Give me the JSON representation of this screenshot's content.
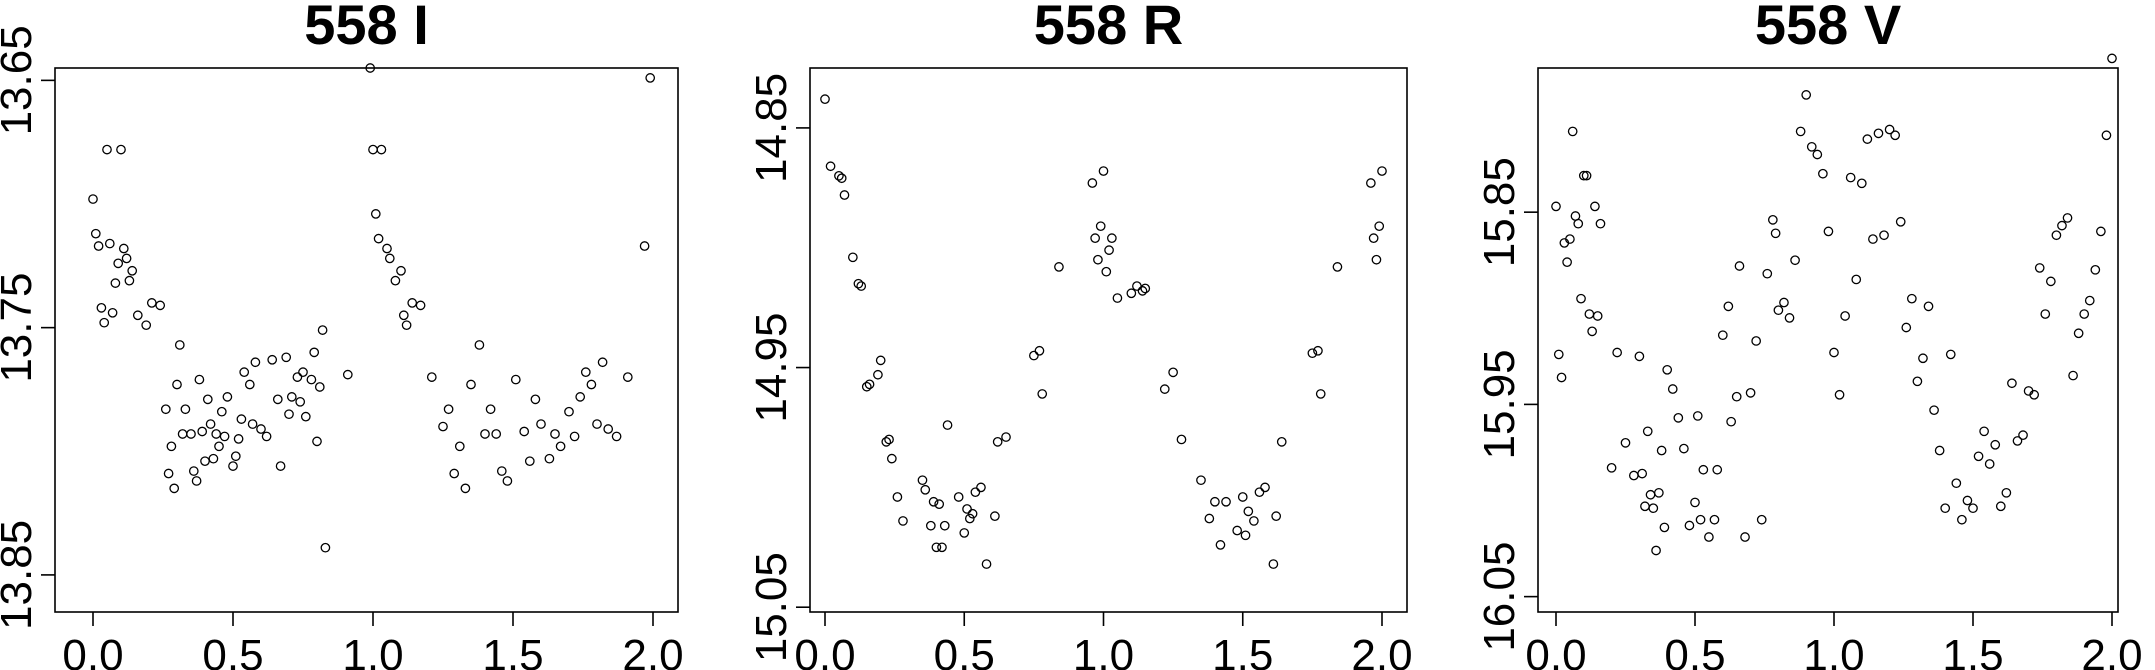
{
  "chart_data": [
    {
      "type": "scatter",
      "title": "558 I",
      "xlabel": "",
      "ylabel": "",
      "xlim": [
        0,
        2
      ],
      "ylim": [
        13.865,
        13.645
      ],
      "y_reversed": true,
      "xticks": [
        "0.0",
        "0.5",
        "1.0",
        "1.5",
        "2.0"
      ],
      "yticks": [
        "13.65",
        "13.75",
        "13.85"
      ],
      "ytick_values": [
        13.65,
        13.75,
        13.85
      ],
      "marker": "open-circle",
      "x": [
        0.0,
        0.01,
        0.02,
        0.03,
        0.04,
        0.05,
        0.06,
        0.07,
        0.08,
        0.09,
        0.1,
        0.11,
        0.12,
        0.13,
        0.14,
        0.16,
        0.19,
        0.21,
        0.24,
        0.26,
        0.27,
        0.28,
        0.29,
        0.3,
        0.31,
        0.32,
        0.33,
        0.35,
        0.36,
        0.37,
        0.38,
        0.39,
        0.4,
        0.41,
        0.42,
        0.43,
        0.44,
        0.45,
        0.46,
        0.47,
        0.48,
        0.5,
        0.51,
        0.52,
        0.53,
        0.54,
        0.56,
        0.57,
        0.58,
        0.6,
        0.62,
        0.64,
        0.66,
        0.67,
        0.69,
        0.7,
        0.71,
        0.73,
        0.74,
        0.75,
        0.76,
        0.78,
        0.79,
        0.8,
        0.81,
        0.82,
        0.83,
        0.91,
        0.99,
        1.0,
        1.01,
        1.02,
        1.03,
        1.05,
        1.06,
        1.08,
        1.1,
        1.11,
        1.12,
        1.14,
        1.17,
        1.21,
        1.25,
        1.27,
        1.29,
        1.31,
        1.33,
        1.35,
        1.38,
        1.4,
        1.42,
        1.44,
        1.46,
        1.48,
        1.51,
        1.54,
        1.56,
        1.58,
        1.6,
        1.63,
        1.65,
        1.67,
        1.7,
        1.72,
        1.74,
        1.76,
        1.78,
        1.8,
        1.82,
        1.84,
        1.87,
        1.91,
        1.97,
        1.99
      ],
      "y": [
        13.698,
        13.712,
        13.717,
        13.742,
        13.748,
        13.678,
        13.716,
        13.744,
        13.732,
        13.724,
        13.678,
        13.718,
        13.722,
        13.731,
        13.727,
        13.745,
        13.749,
        13.74,
        13.741,
        13.783,
        13.809,
        13.798,
        13.815,
        13.773,
        13.757,
        13.793,
        13.783,
        13.793,
        13.808,
        13.812,
        13.771,
        13.792,
        13.804,
        13.779,
        13.789,
        13.803,
        13.793,
        13.798,
        13.784,
        13.794,
        13.778,
        13.806,
        13.802,
        13.795,
        13.787,
        13.768,
        13.773,
        13.789,
        13.764,
        13.791,
        13.794,
        13.763,
        13.779,
        13.806,
        13.762,
        13.785,
        13.778,
        13.77,
        13.78,
        13.768,
        13.786,
        13.771,
        13.76,
        13.796,
        13.774,
        13.751,
        13.839,
        13.769,
        13.645,
        13.678,
        13.704,
        13.714,
        13.678,
        13.718,
        13.722,
        13.731,
        13.727,
        13.745,
        13.749,
        13.74,
        13.741,
        13.77,
        13.79,
        13.783,
        13.809,
        13.798,
        13.815,
        13.773,
        13.757,
        13.793,
        13.783,
        13.793,
        13.808,
        13.812,
        13.771,
        13.792,
        13.804,
        13.779,
        13.789,
        13.803,
        13.793,
        13.798,
        13.784,
        13.794,
        13.778,
        13.768,
        13.773,
        13.789,
        13.764,
        13.791,
        13.794,
        13.77,
        13.717,
        13.649
      ],
      "y_extra": []
    },
    {
      "type": "scatter",
      "title": "558 R",
      "xlabel": "",
      "ylabel": "",
      "xlim": [
        0,
        2
      ],
      "ylim": [
        15.052,
        14.825
      ],
      "y_reversed": true,
      "xticks": [
        "0.0",
        "0.5",
        "1.0",
        "1.5",
        "2.0"
      ],
      "yticks": [
        "14.85",
        "14.95",
        "15.05"
      ],
      "ytick_values": [
        14.85,
        14.95,
        15.05
      ],
      "marker": "open-circle",
      "x": [
        0.0,
        0.02,
        0.05,
        0.06,
        0.07,
        0.1,
        0.12,
        0.13,
        0.15,
        0.16,
        0.19,
        0.2,
        0.22,
        0.23,
        0.24,
        0.26,
        0.28,
        0.35,
        0.36,
        0.38,
        0.39,
        0.4,
        0.41,
        0.42,
        0.43,
        0.44,
        0.48,
        0.5,
        0.51,
        0.52,
        0.53,
        0.54,
        0.56,
        0.58,
        0.61,
        0.62,
        0.65,
        0.75,
        0.77,
        0.78,
        0.84,
        0.96,
        0.97,
        0.98,
        0.99,
        1.0,
        1.01,
        1.02,
        1.03,
        1.05,
        1.1,
        1.12,
        1.14,
        1.15,
        1.22,
        1.25,
        1.28,
        1.35,
        1.38,
        1.4,
        1.42,
        1.44,
        1.48,
        1.5,
        1.51,
        1.52,
        1.54,
        1.56,
        1.58,
        1.61,
        1.62,
        1.64,
        1.75,
        1.77,
        1.78,
        1.84,
        1.96,
        1.97,
        1.98,
        1.99,
        2.0
      ],
      "y": [
        14.838,
        14.866,
        14.87,
        14.871,
        14.878,
        14.904,
        14.915,
        14.916,
        14.958,
        14.957,
        14.953,
        14.947,
        14.981,
        14.98,
        14.988,
        15.004,
        15.014,
        14.997,
        15.001,
        15.016,
        15.006,
        15.025,
        15.007,
        15.025,
        15.016,
        14.974,
        15.004,
        15.019,
        15.009,
        15.013,
        15.011,
        15.002,
        15.0,
        15.032,
        15.012,
        14.981,
        14.979,
        14.945,
        14.943,
        14.961,
        14.908,
        14.873,
        14.896,
        14.905,
        14.891,
        14.868,
        14.91,
        14.901,
        14.896,
        14.921,
        14.919,
        14.916,
        14.918,
        14.917,
        14.959,
        14.952,
        14.98,
        14.997,
        15.013,
        15.006,
        15.024,
        15.006,
        15.018,
        15.004,
        15.02,
        15.01,
        15.014,
        15.002,
        15.0,
        15.032,
        15.012,
        14.981,
        14.944,
        14.943,
        14.961,
        14.908,
        14.873,
        14.896,
        14.905,
        14.891,
        14.868
      ],
      "y_extra": []
    },
    {
      "type": "scatter",
      "title": "558 V",
      "xlabel": "",
      "ylabel": "",
      "xlim": [
        0,
        2
      ],
      "ylim": [
        16.058,
        15.775
      ],
      "y_reversed": true,
      "xticks": [
        "0.0",
        "0.5",
        "1.0",
        "1.5",
        "2.0"
      ],
      "yticks": [
        "15.85",
        "15.95",
        "16.05"
      ],
      "ytick_values": [
        15.85,
        15.95,
        16.05
      ],
      "marker": "open-circle",
      "x": [
        0.0,
        0.01,
        0.02,
        0.03,
        0.04,
        0.05,
        0.06,
        0.07,
        0.08,
        0.09,
        0.1,
        0.11,
        0.12,
        0.13,
        0.14,
        0.15,
        0.16,
        0.2,
        0.22,
        0.25,
        0.28,
        0.3,
        0.31,
        0.32,
        0.33,
        0.34,
        0.35,
        0.36,
        0.37,
        0.38,
        0.39,
        0.4,
        0.42,
        0.44,
        0.46,
        0.48,
        0.5,
        0.51,
        0.52,
        0.53,
        0.55,
        0.57,
        0.58,
        0.6,
        0.62,
        0.63,
        0.65,
        0.66,
        0.68,
        0.7,
        0.72,
        0.74,
        0.76,
        0.78,
        0.79,
        0.8,
        0.82,
        0.84,
        0.86,
        0.88,
        0.9,
        0.92,
        0.94,
        0.96,
        0.98,
        1.0,
        1.02,
        1.04,
        1.06,
        1.08,
        1.1,
        1.12,
        1.14,
        1.16,
        1.18,
        1.2,
        1.22,
        1.24,
        1.26,
        1.28,
        1.3,
        1.32,
        1.34,
        1.36,
        1.38,
        1.4,
        1.42,
        1.44,
        1.46,
        1.48,
        1.5,
        1.52,
        1.54,
        1.56,
        1.58,
        1.6,
        1.62,
        1.64,
        1.66,
        1.68,
        1.7,
        1.72,
        1.74,
        1.76,
        1.78,
        1.8,
        1.82,
        1.84,
        1.86,
        1.88,
        1.9,
        1.92,
        1.94,
        1.96,
        1.98,
        2.0
      ],
      "y": [
        15.847,
        15.924,
        15.936,
        15.866,
        15.876,
        15.864,
        15.808,
        15.852,
        15.856,
        15.895,
        15.831,
        15.831,
        15.903,
        15.912,
        15.847,
        15.904,
        15.856,
        15.983,
        15.923,
        15.97,
        15.987,
        15.925,
        15.986,
        16.003,
        15.964,
        15.997,
        16.004,
        16.026,
        15.996,
        15.974,
        16.014,
        15.932,
        15.942,
        15.957,
        15.973,
        16.013,
        16.001,
        15.956,
        16.01,
        15.984,
        16.019,
        16.01,
        15.984,
        15.914,
        15.899,
        15.959,
        15.946,
        15.878,
        16.019,
        15.944,
        15.917,
        16.01,
        15.882,
        15.854,
        15.861,
        15.901,
        15.897,
        15.905,
        15.875,
        15.808,
        15.789,
        15.816,
        15.82,
        15.83,
        15.86,
        15.923,
        15.945,
        15.904,
        15.832,
        15.885,
        15.835,
        15.812,
        15.864,
        15.809,
        15.862,
        15.807,
        15.81,
        15.855,
        15.91,
        15.895,
        15.938,
        15.926,
        15.899,
        15.953,
        15.974,
        16.004,
        15.924,
        15.991,
        16.01,
        16.0,
        16.004,
        15.977,
        15.964,
        15.981,
        15.971,
        16.003,
        15.996,
        15.939,
        15.969,
        15.966,
        15.943,
        15.945,
        15.879,
        15.903,
        15.886,
        15.862,
        15.857,
        15.853,
        15.935,
        15.913,
        15.903,
        15.896,
        15.88,
        15.86,
        15.81,
        15.77
      ],
      "y_extra": []
    }
  ]
}
